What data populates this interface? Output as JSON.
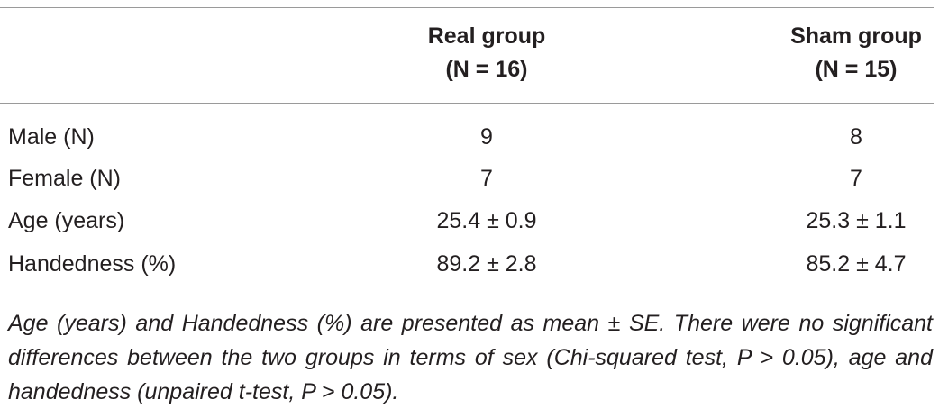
{
  "table": {
    "headers": [
      {
        "line1": "",
        "line2": ""
      },
      {
        "line1": "Real group",
        "line2": "(N = 16)"
      },
      {
        "line1": "Sham group",
        "line2": "(N = 15)"
      }
    ],
    "rows": [
      {
        "label": "Male (N)",
        "real": "9",
        "sham": "8"
      },
      {
        "label": "Female (N)",
        "real": "7",
        "sham": "7"
      },
      {
        "label": "Age (years)",
        "real": "25.4 ± 0.9",
        "sham": "25.3 ± 1.1"
      },
      {
        "label": "Handedness (%)",
        "real": "89.2 ± 2.8",
        "sham": "85.2 ± 4.7"
      }
    ]
  },
  "footnote": "Age (years) and Handedness (%) are presented as mean ± SE. There were no significant differences between the two groups in terms of sex (Chi-squared test, P > 0.05), age and handedness (unpaired t-test, P > 0.05)."
}
